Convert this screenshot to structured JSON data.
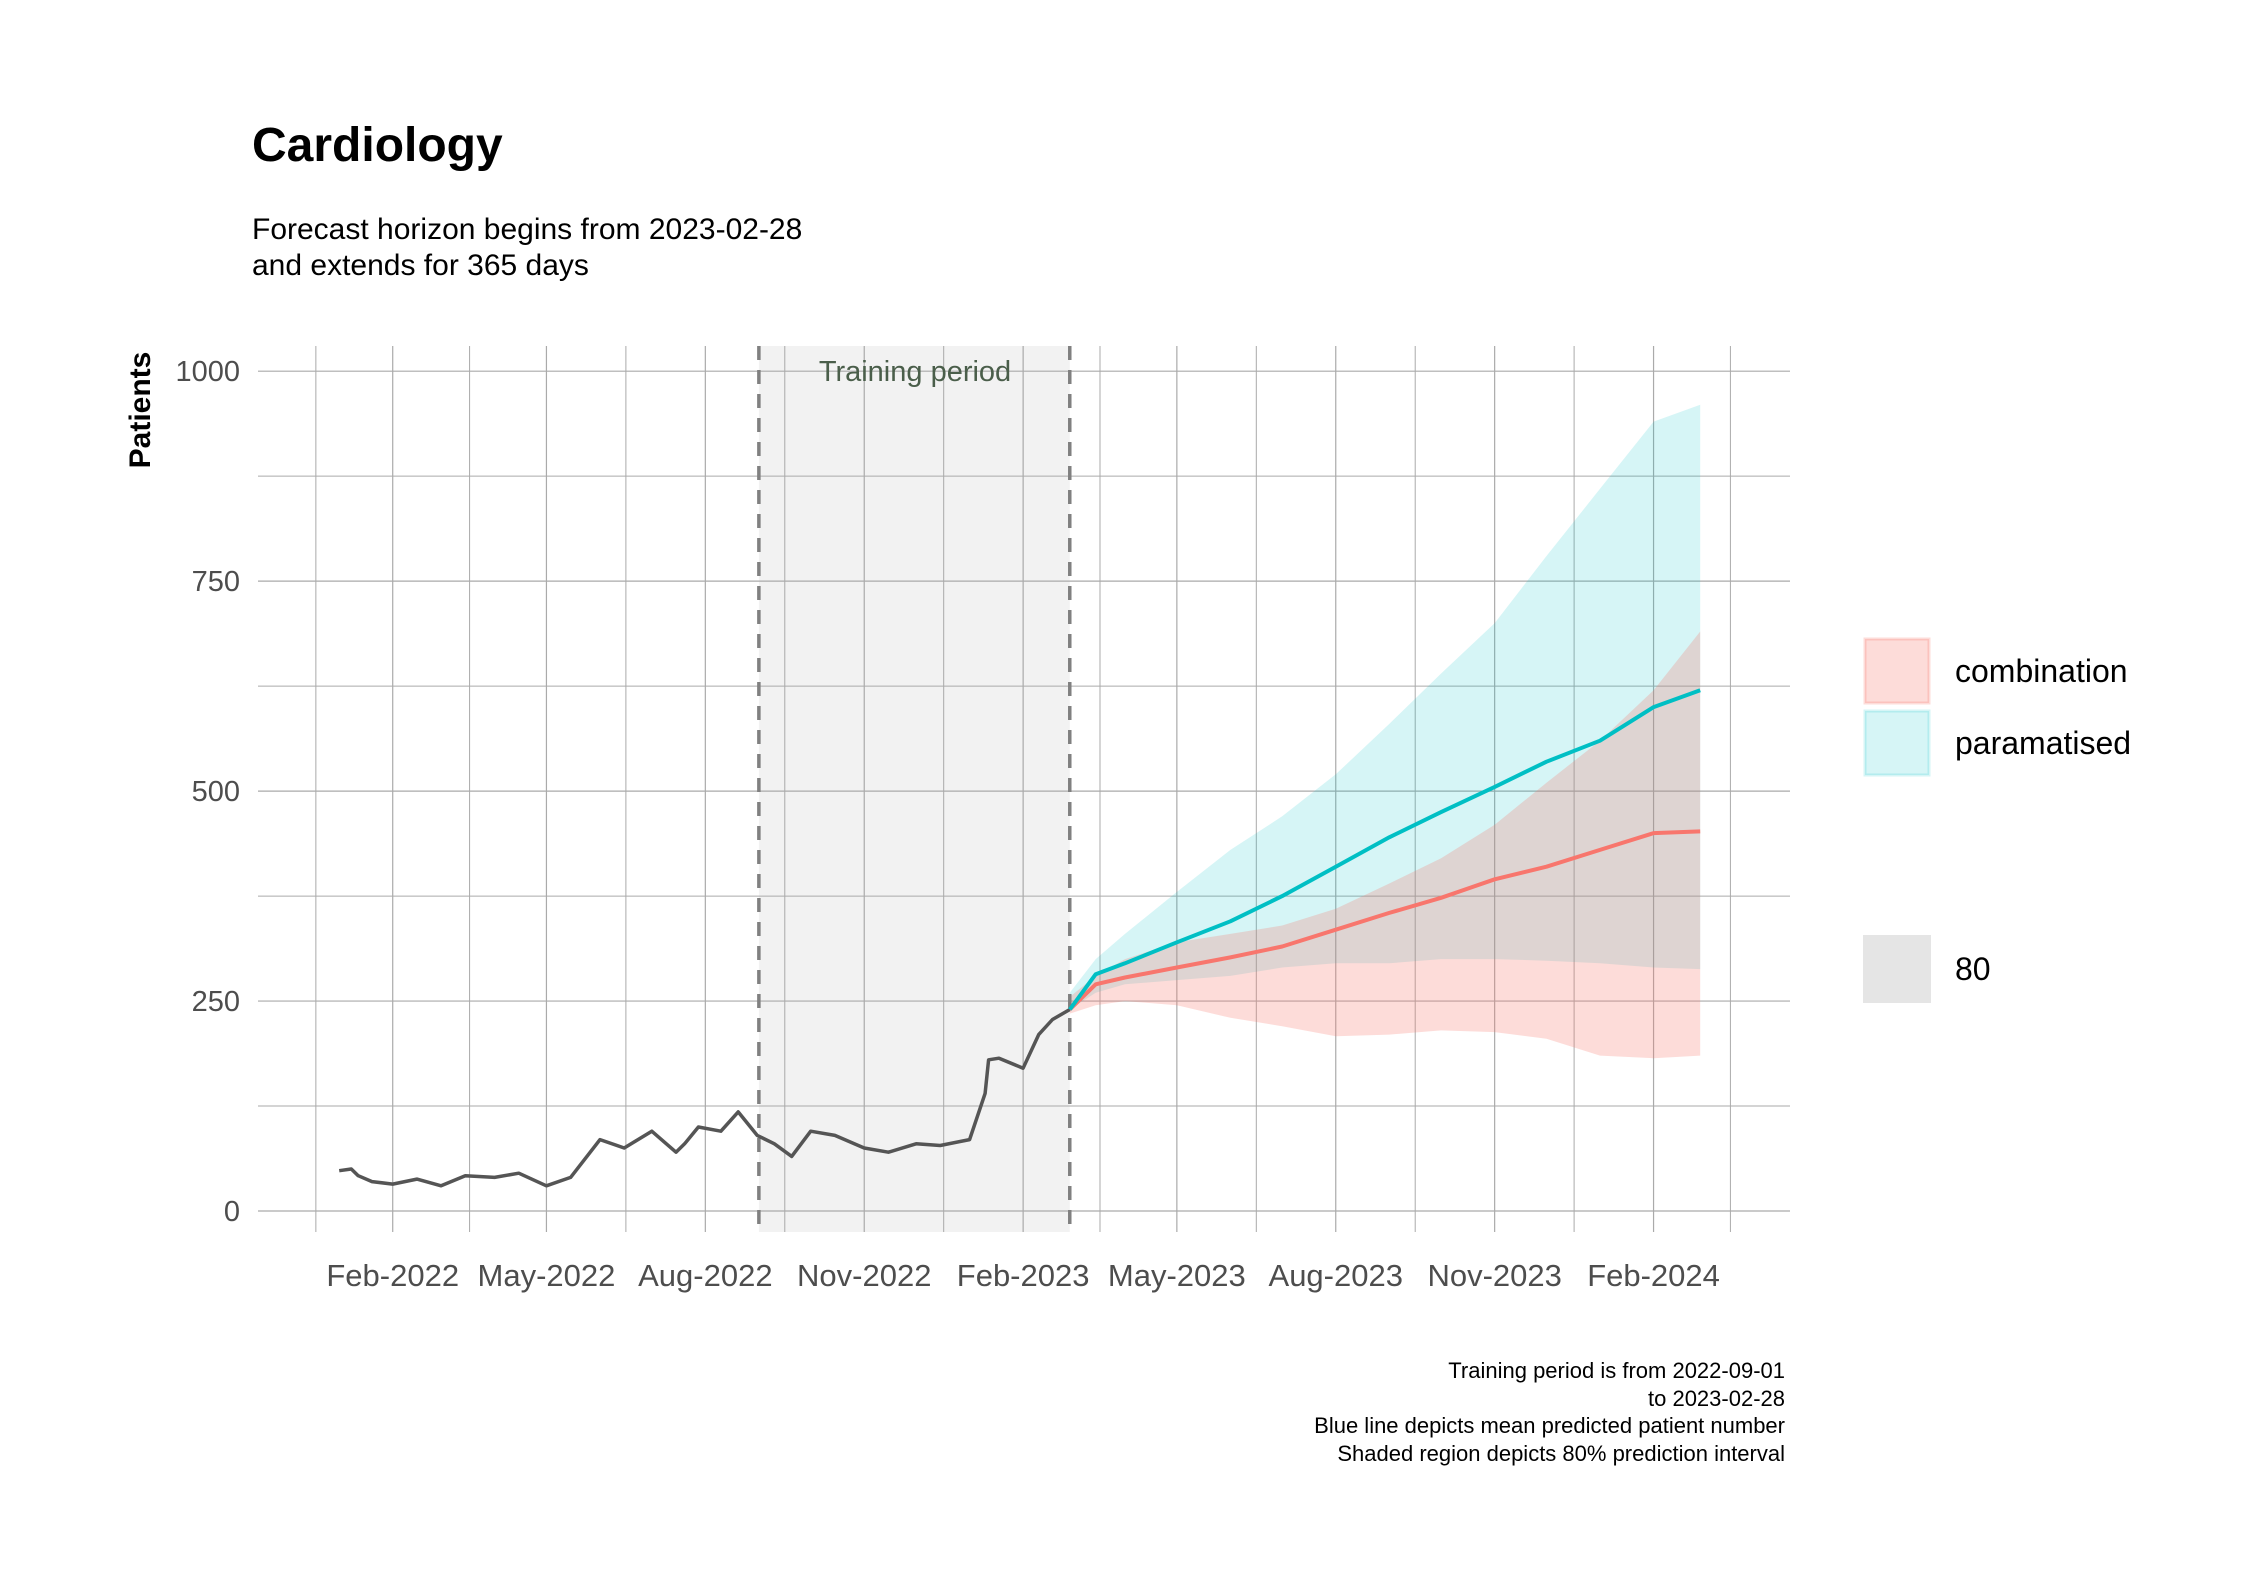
{
  "title": "Cardiology",
  "subtitle_lines": [
    "Forecast horizon begins from 2023-02-28",
    "and extends for 365 days"
  ],
  "caption_lines": [
    "Training period is from 2022-09-01",
    "to 2023-02-28",
    "Blue line depicts mean predicted patient number",
    "Shaded region depicts 80% prediction interval"
  ],
  "chart_data": {
    "type": "line",
    "title": "Cardiology",
    "xlabel": "",
    "ylabel": "Patients",
    "x_type": "date",
    "xlim": [
      "2021-11-15",
      "2024-04-20"
    ],
    "ylim": [
      -25,
      1030
    ],
    "y_ticks": [
      0,
      250,
      500,
      750,
      1000
    ],
    "x_ticks": [
      {
        "date": "2022-02-01",
        "label": "Feb-2022"
      },
      {
        "date": "2022-05-01",
        "label": "May-2022"
      },
      {
        "date": "2022-08-01",
        "label": "Aug-2022"
      },
      {
        "date": "2022-11-01",
        "label": "Nov-2022"
      },
      {
        "date": "2023-02-01",
        "label": "Feb-2023"
      },
      {
        "date": "2023-05-01",
        "label": "May-2023"
      },
      {
        "date": "2023-08-01",
        "label": "Aug-2023"
      },
      {
        "date": "2023-11-01",
        "label": "Nov-2023"
      },
      {
        "date": "2024-02-01",
        "label": "Feb-2024"
      }
    ],
    "grid": true,
    "legend_position": "right",
    "colors": {
      "observed": "#555555",
      "combination": "#F8766D",
      "paramatised": "#00BFC4",
      "training_shade": "#f2f2f2",
      "vline": "#808080",
      "grid": "#aaaaaa"
    },
    "training_period": {
      "start": "2022-09-01",
      "end": "2023-02-28",
      "label": "Training period"
    },
    "observed": {
      "x": [
        "2022-01-01",
        "2022-01-08",
        "2022-01-12",
        "2022-01-20",
        "2022-02-01",
        "2022-02-15",
        "2022-03-01",
        "2022-03-15",
        "2022-04-01",
        "2022-04-15",
        "2022-05-01",
        "2022-05-15",
        "2022-06-01",
        "2022-06-15",
        "2022-07-01",
        "2022-07-15",
        "2022-07-20",
        "2022-07-28",
        "2022-08-10",
        "2022-08-20",
        "2022-08-31",
        "2022-09-10",
        "2022-09-20",
        "2022-10-01",
        "2022-10-15",
        "2022-11-01",
        "2022-11-15",
        "2022-12-01",
        "2022-12-15",
        "2023-01-01",
        "2023-01-10",
        "2023-01-12",
        "2023-01-18",
        "2023-02-01",
        "2023-02-10",
        "2023-02-18",
        "2023-02-28"
      ],
      "y": [
        48,
        50,
        42,
        35,
        32,
        38,
        30,
        42,
        40,
        45,
        30,
        40,
        85,
        75,
        95,
        70,
        80,
        100,
        95,
        118,
        90,
        80,
        65,
        95,
        90,
        75,
        70,
        80,
        78,
        85,
        140,
        180,
        182,
        170,
        210,
        228,
        240
      ]
    },
    "series": [
      {
        "name": "combination",
        "x": [
          "2023-02-28",
          "2023-03-15",
          "2023-04-01",
          "2023-05-01",
          "2023-06-01",
          "2023-07-01",
          "2023-08-01",
          "2023-09-01",
          "2023-10-01",
          "2023-11-01",
          "2023-12-01",
          "2024-01-01",
          "2024-02-01",
          "2024-02-28"
        ],
        "mean": [
          240,
          270,
          278,
          290,
          302,
          315,
          335,
          355,
          373,
          395,
          410,
          430,
          450,
          452
        ],
        "lower": [
          235,
          245,
          250,
          245,
          230,
          220,
          208,
          210,
          215,
          213,
          205,
          185,
          182,
          185
        ],
        "upper": [
          255,
          280,
          300,
          320,
          330,
          340,
          360,
          390,
          420,
          460,
          510,
          560,
          620,
          690
        ]
      },
      {
        "name": "paramatised",
        "x": [
          "2023-02-28",
          "2023-03-15",
          "2023-04-01",
          "2023-05-01",
          "2023-06-01",
          "2023-07-01",
          "2023-08-01",
          "2023-09-01",
          "2023-10-01",
          "2023-11-01",
          "2023-12-01",
          "2024-01-01",
          "2024-02-01",
          "2024-02-28"
        ],
        "mean": [
          240,
          282,
          295,
          320,
          345,
          375,
          410,
          445,
          475,
          505,
          535,
          560,
          600,
          620
        ],
        "lower": [
          240,
          260,
          270,
          275,
          280,
          290,
          295,
          295,
          300,
          300,
          298,
          295,
          290,
          288
        ],
        "upper": [
          260,
          300,
          330,
          380,
          430,
          470,
          520,
          580,
          640,
          700,
          780,
          860,
          940,
          960
        ]
      }
    ],
    "legend": {
      "series_items": [
        "combination",
        "paramatised"
      ],
      "interval_label": "80"
    }
  }
}
